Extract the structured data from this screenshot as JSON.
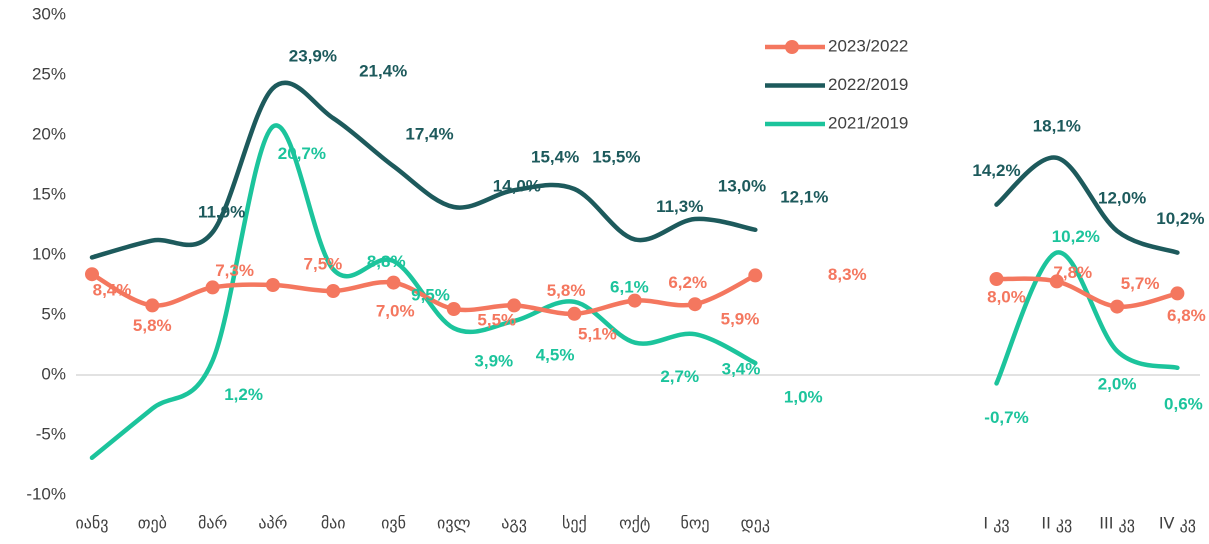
{
  "chart_data": {
    "type": "line",
    "categories": [
      "იანვ",
      "თებ",
      "მარ",
      "აპრ",
      "მაი",
      "ივნ",
      "ივლ",
      "აგვ",
      "სექ",
      "ოქტ",
      "ნოე",
      "დეკ",
      null,
      null,
      null,
      "I კვ",
      "II კვ",
      "III კვ",
      "IV კვ"
    ],
    "ylim": [
      -10,
      30
    ],
    "yticks": [
      {
        "value": -10,
        "label": "-10%"
      },
      {
        "value": -5,
        "label": "-5%"
      },
      {
        "value": 0,
        "label": "0%"
      },
      {
        "value": 5,
        "label": "5%"
      },
      {
        "value": 10,
        "label": "10%"
      },
      {
        "value": 15,
        "label": "15%"
      },
      {
        "value": 20,
        "label": "20%"
      },
      {
        "value": 25,
        "label": "25%"
      },
      {
        "value": 30,
        "label": "30%"
      }
    ],
    "grid": false,
    "legend": "top-right",
    "series": [
      {
        "name": "2023/2022",
        "color": "#f4775f",
        "markers": true,
        "values": [
          8.4,
          5.8,
          7.3,
          7.5,
          7.0,
          7.7,
          5.5,
          5.8,
          5.1,
          6.2,
          5.9,
          8.3,
          null,
          null,
          null,
          8.0,
          7.8,
          5.7,
          6.8
        ],
        "value_labels": [
          "8,4%",
          "5,8%",
          "7,3%",
          "7,5%",
          "7,0%",
          null,
          "5,5%",
          "5,8%",
          "5,1%",
          "6,2%",
          "5,9%",
          "8,3%",
          null,
          null,
          null,
          "8,0%",
          "7,8%",
          "5,7%",
          "6,8%"
        ]
      },
      {
        "name": "2022/2019",
        "color": "#1d5a5c",
        "markers": false,
        "values": [
          9.8,
          11.2,
          11.9,
          23.9,
          21.4,
          17.4,
          14.0,
          15.4,
          15.5,
          11.3,
          13.0,
          12.1,
          null,
          null,
          null,
          14.2,
          18.1,
          12.0,
          10.2
        ],
        "value_labels": [
          null,
          null,
          "11,9%",
          "23,9%",
          "21,4%",
          "17,4%",
          "14,0%",
          "15,4%",
          "15,5%",
          "11,3%",
          "13,0%",
          "12,1%",
          null,
          null,
          null,
          "14,2%",
          "18,1%",
          "12,0%",
          "10,2%"
        ]
      },
      {
        "name": "2021/2019",
        "color": "#1cc49c",
        "markers": false,
        "values": [
          -6.9,
          -2.8,
          1.2,
          20.7,
          8.8,
          9.5,
          3.9,
          4.5,
          6.1,
          2.7,
          3.4,
          1.0,
          null,
          null,
          null,
          -0.7,
          10.2,
          2.0,
          0.6
        ],
        "value_labels": [
          null,
          null,
          "1,2%",
          "20,7%",
          "8,8%",
          "9,5%",
          "3,9%",
          "4,5%",
          "6,1%",
          "2,7%",
          "3,4%",
          "1,0%",
          null,
          null,
          null,
          "-0,7%",
          "10,2%",
          "2,0%",
          "0,6%"
        ]
      }
    ]
  }
}
